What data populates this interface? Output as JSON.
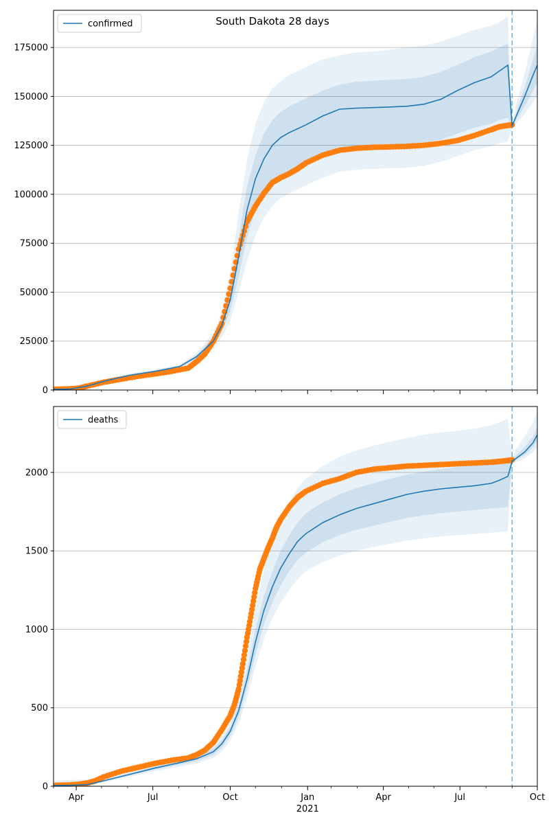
{
  "title": "South Dakota 28 days",
  "colors": {
    "model_line": "#1f77b4",
    "band": "#1f77b4",
    "observed": "#ff7f0e",
    "grid": "#b0b0b0",
    "axis": "#000000"
  },
  "chart_data": [
    {
      "type": "line",
      "name": "confirmed",
      "legend": "confirmed",
      "legend_position": "top-left",
      "ylim": [
        0,
        194000
      ],
      "yticks": [
        0,
        25000,
        50000,
        75000,
        100000,
        125000,
        150000,
        175000
      ],
      "ytick_labels": [
        "0",
        "25000",
        "50000",
        "75000",
        "100000",
        "125000",
        "150000",
        "175000"
      ],
      "xlim_days": [
        0,
        575
      ],
      "forecast_start_day": 545,
      "model_median": {
        "x": [
          0,
          20,
          40,
          60,
          90,
          120,
          150,
          170,
          190,
          200,
          210,
          220,
          230,
          240,
          250,
          260,
          270,
          280,
          290,
          300,
          320,
          340,
          360,
          380,
          400,
          420,
          440,
          460,
          480,
          500,
          520,
          530,
          540,
          545,
          550,
          560,
          570,
          575
        ],
        "y": [
          400,
          500,
          2000,
          4500,
          7500,
          9500,
          12000,
          17000,
          25000,
          33000,
          46000,
          68000,
          92000,
          108000,
          118000,
          125000,
          129000,
          131500,
          133500,
          135500,
          140000,
          143500,
          144000,
          144300,
          144600,
          145000,
          146000,
          148500,
          153000,
          157000,
          160000,
          163000,
          166000,
          135000,
          140000,
          150000,
          161000,
          166000
        ]
      },
      "band_inner": {
        "lower": [
          300,
          400,
          1600,
          4000,
          7000,
          9000,
          11500,
          16000,
          23000,
          30000,
          40000,
          58000,
          78000,
          92000,
          101000,
          107000,
          110000,
          112000,
          114000,
          116000,
          120000,
          123000,
          124000,
          124500,
          124800,
          125000,
          126000,
          128000,
          131000,
          134000,
          136000,
          138000,
          139000,
          134500,
          138000,
          145000,
          153000,
          157000
        ],
        "upper": [
          500,
          600,
          2400,
          5000,
          8000,
          10000,
          12500,
          18000,
          27000,
          36000,
          52000,
          78000,
          104000,
          120000,
          131000,
          138000,
          142000,
          145000,
          147000,
          149000,
          153000,
          156000,
          157500,
          158000,
          158500,
          159000,
          160000,
          162500,
          166000,
          170000,
          173000,
          175000,
          177000,
          135500,
          142000,
          155000,
          169000,
          176000
        ]
      },
      "band_outer": {
        "lower": [
          200,
          300,
          1200,
          3500,
          6500,
          8500,
          11000,
          15000,
          21000,
          27000,
          35000,
          50000,
          66000,
          79000,
          88000,
          94000,
          98000,
          100500,
          102500,
          104500,
          108500,
          111500,
          112500,
          113000,
          113300,
          113500,
          114500,
          116500,
          119500,
          122500,
          124500,
          126000,
          127000,
          134000,
          136000,
          141000,
          147000,
          150000
        ],
        "upper": [
          600,
          800,
          2800,
          5500,
          8500,
          10500,
          13000,
          19000,
          29000,
          40000,
          60000,
          90000,
          118000,
          136000,
          147000,
          154000,
          158000,
          161000,
          163000,
          165000,
          169000,
          171000,
          172500,
          173000,
          174000,
          175000,
          176000,
          178000,
          181000,
          184000,
          186000,
          188000,
          191000,
          136000,
          146000,
          162000,
          180000,
          190000
        ]
      },
      "observed": {
        "x": [
          0,
          20,
          30,
          40,
          60,
          80,
          100,
          120,
          140,
          160,
          170,
          180,
          190,
          200,
          210,
          220,
          230,
          240,
          250,
          260,
          270,
          280,
          290,
          300,
          320,
          340,
          360,
          380,
          400,
          420,
          440,
          460,
          480,
          500,
          520,
          530,
          540,
          545
        ],
        "y": [
          400,
          600,
          900,
          2000,
          4000,
          5500,
          7000,
          8200,
          9500,
          11200,
          14500,
          18500,
          25000,
          34000,
          52000,
          72000,
          86000,
          94000,
          100500,
          106000,
          108500,
          110500,
          113000,
          116000,
          120000,
          122500,
          123500,
          124000,
          124200,
          124500,
          125000,
          126000,
          127500,
          130000,
          133000,
          134500,
          135200,
          135500
        ]
      }
    },
    {
      "type": "line",
      "name": "deaths",
      "legend": "deaths",
      "legend_position": "top-left",
      "ylim": [
        0,
        2420
      ],
      "yticks": [
        0,
        500,
        1000,
        1500,
        2000
      ],
      "ytick_labels": [
        "0",
        "500",
        "1000",
        "1500",
        "2000"
      ],
      "xlim_days": [
        0,
        575
      ],
      "forecast_start_day": 545,
      "xtick_major_days": [
        27,
        118,
        210,
        302,
        392,
        483,
        575
      ],
      "xtick_labels": [
        "Apr",
        "Jul",
        "Oct",
        "Jan",
        "Apr",
        "Jul",
        "Oct"
      ],
      "xtick_minor_days": [
        0,
        57,
        88,
        149,
        180,
        240,
        271,
        330,
        361,
        422,
        452,
        514,
        545
      ],
      "year_label": "2021",
      "model_median": {
        "x": [
          0,
          20,
          40,
          60,
          90,
          120,
          150,
          170,
          190,
          200,
          210,
          220,
          230,
          240,
          250,
          260,
          270,
          280,
          290,
          300,
          320,
          340,
          360,
          380,
          400,
          420,
          440,
          460,
          480,
          500,
          520,
          530,
          540,
          545,
          550,
          560,
          570,
          575
        ],
        "y": [
          5,
          6,
          10,
          35,
          75,
          115,
          150,
          175,
          220,
          270,
          350,
          480,
          680,
          920,
          1120,
          1270,
          1390,
          1480,
          1560,
          1610,
          1680,
          1730,
          1770,
          1800,
          1830,
          1860,
          1880,
          1895,
          1905,
          1915,
          1930,
          1950,
          1975,
          2070,
          2090,
          2130,
          2190,
          2240
        ],
        "note": "forecast segment begins at day 545"
      },
      "band_inner": {
        "lower": [
          3,
          4,
          8,
          30,
          68,
          105,
          138,
          160,
          200,
          245,
          320,
          440,
          620,
          840,
          1030,
          1170,
          1280,
          1370,
          1440,
          1490,
          1555,
          1600,
          1635,
          1660,
          1685,
          1710,
          1725,
          1740,
          1750,
          1760,
          1770,
          1775,
          1780,
          2065,
          2080,
          2110,
          2160,
          2200
        ],
        "upper": [
          8,
          9,
          14,
          40,
          82,
          125,
          162,
          190,
          240,
          295,
          380,
          520,
          740,
          1000,
          1210,
          1370,
          1500,
          1600,
          1680,
          1740,
          1810,
          1860,
          1900,
          1930,
          1960,
          1985,
          2005,
          2020,
          2035,
          2050,
          2065,
          2080,
          2100,
          2085,
          2110,
          2160,
          2230,
          2290
        ]
      },
      "band_outer": {
        "lower": [
          2,
          3,
          6,
          25,
          60,
          95,
          125,
          145,
          180,
          220,
          290,
          400,
          560,
          760,
          940,
          1070,
          1170,
          1250,
          1320,
          1370,
          1430,
          1470,
          1500,
          1525,
          1545,
          1565,
          1580,
          1592,
          1600,
          1607,
          1615,
          1620,
          1625,
          2060,
          2065,
          2090,
          2130,
          2160
        ],
        "upper": [
          35,
          40,
          45,
          60,
          100,
          140,
          180,
          210,
          265,
          320,
          420,
          580,
          820,
          1120,
          1380,
          1560,
          1700,
          1810,
          1900,
          1960,
          2040,
          2100,
          2140,
          2170,
          2195,
          2220,
          2240,
          2255,
          2265,
          2280,
          2300,
          2320,
          2345,
          2100,
          2150,
          2230,
          2320,
          2400
        ]
      },
      "observed": {
        "x": [
          0,
          20,
          30,
          40,
          50,
          60,
          80,
          100,
          120,
          140,
          160,
          170,
          180,
          190,
          200,
          210,
          215,
          220,
          225,
          230,
          235,
          240,
          245,
          250,
          255,
          260,
          265,
          270,
          280,
          290,
          300,
          320,
          340,
          360,
          380,
          400,
          420,
          440,
          460,
          480,
          500,
          520,
          530,
          540,
          545
        ],
        "y": [
          5,
          8,
          12,
          20,
          35,
          60,
          95,
          120,
          145,
          165,
          180,
          200,
          230,
          280,
          360,
          450,
          520,
          620,
          780,
          950,
          1100,
          1260,
          1380,
          1450,
          1520,
          1580,
          1650,
          1700,
          1780,
          1840,
          1880,
          1930,
          1960,
          2000,
          2020,
          2030,
          2040,
          2045,
          2050,
          2055,
          2060,
          2065,
          2070,
          2075,
          2080
        ]
      }
    }
  ]
}
